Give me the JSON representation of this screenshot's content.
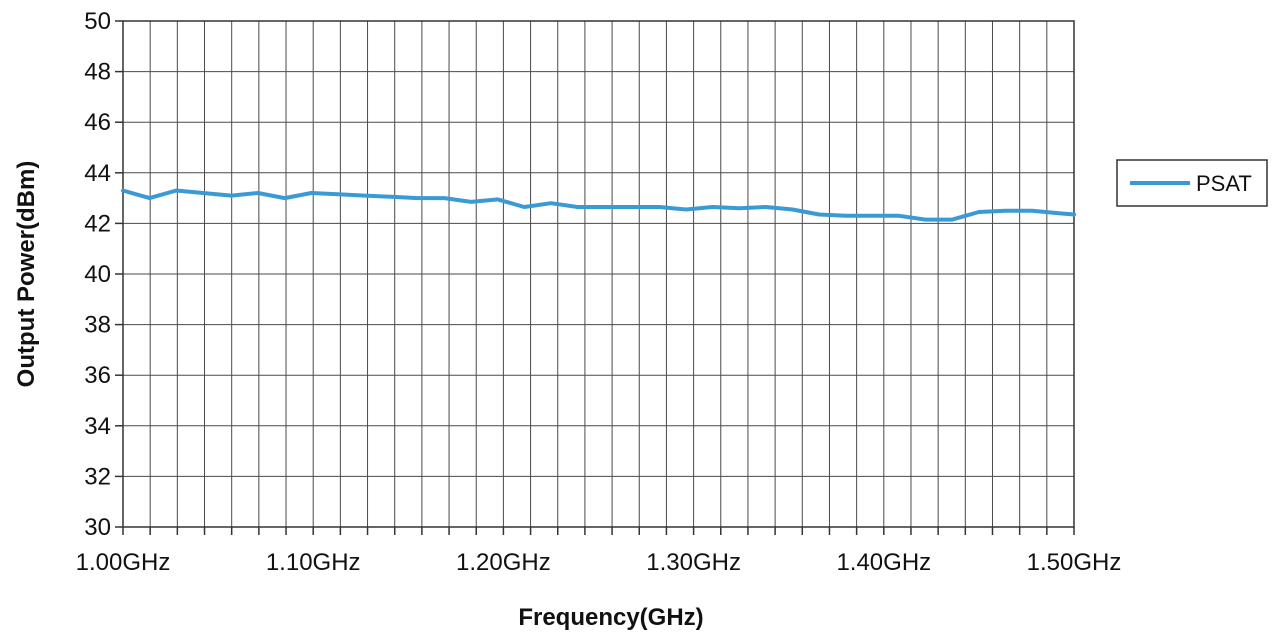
{
  "chart_data": {
    "type": "line",
    "title": "",
    "xlabel": "Frequency(GHz)",
    "ylabel": "Output Power(dBm)",
    "xlim": [
      1.0,
      1.5
    ],
    "ylim": [
      30,
      50
    ],
    "y_ticks": [
      "30",
      "32",
      "34",
      "36",
      "38",
      "40",
      "42",
      "44",
      "46",
      "48",
      "50"
    ],
    "x_tick_labels": [
      "1.00GHz",
      "1.10GHz",
      "1.20GHz",
      "1.30GHz",
      "1.40GHz",
      "1.50GHz"
    ],
    "grid": true,
    "legend_position": "right",
    "series": [
      {
        "name": "PSAT",
        "color": "#3a9ad6",
        "x": [
          1.0,
          1.014,
          1.028,
          1.042,
          1.057,
          1.071,
          1.085,
          1.099,
          1.113,
          1.127,
          1.141,
          1.155,
          1.169,
          1.183,
          1.197,
          1.211,
          1.225,
          1.239,
          1.253,
          1.267,
          1.282,
          1.296,
          1.31,
          1.324,
          1.338,
          1.352,
          1.366,
          1.38,
          1.394,
          1.408,
          1.422,
          1.436,
          1.45,
          1.464,
          1.478,
          1.492,
          1.5
        ],
        "values": [
          43.3,
          43.0,
          43.3,
          43.2,
          43.1,
          43.2,
          43.0,
          43.2,
          43.15,
          43.1,
          43.05,
          43.0,
          43.0,
          42.85,
          42.95,
          42.65,
          42.8,
          42.65,
          42.65,
          42.65,
          42.65,
          42.55,
          42.65,
          42.6,
          42.65,
          42.55,
          42.35,
          42.3,
          42.3,
          42.3,
          42.15,
          42.15,
          42.45,
          42.5,
          42.5,
          42.4,
          42.35
        ]
      }
    ]
  }
}
